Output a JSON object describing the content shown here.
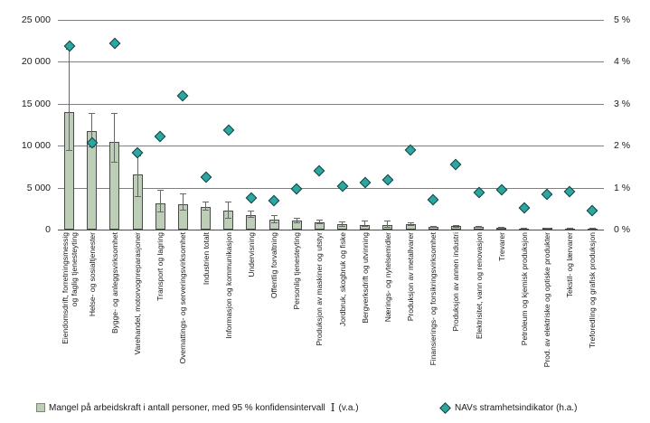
{
  "chart_data": {
    "type": "bar",
    "title": "",
    "categories": [
      "Eiendomsdrift, forretningsmessig\nog faglig tjenesteyting",
      "Helse- og sosialtjenester",
      "Bygge- og anleggsvirksomhet",
      "Varehandel, motorvognreparasjoner",
      "Transport og lagring",
      "Overnattings- og serveringsvirksomhet",
      "Industrien totalt",
      "Informasjon og kommunikasjon",
      "Undervisning",
      "Offentlig forvaltning",
      "Personlig tjenesteyting",
      "Produksjon av maskiner og utstyr",
      "Jordbruk, skogbruk og fiske",
      "Bergverksdrift og utvinning",
      "Nærings- og nytelsemidler",
      "Produksjon av metallvarer",
      "Finansierings- og forsikringsvirksomhet",
      "Produksjon av annen industri",
      "Elektrisitet, vann og renovasjon",
      "Trevarer",
      "Petroleum og kjemisk produksjon",
      "Prod. av elektriske og optiske produkter",
      "Tekstil- og lærvarer",
      "Treforedling og grafisk produksjon"
    ],
    "series": [
      {
        "name": "Mangel på arbeidskraft i antall personer, med 95 % konfidensintervall (v.a.)",
        "type": "bar",
        "axis": "left",
        "values": [
          14000,
          11700,
          10500,
          6600,
          3100,
          3050,
          2650,
          2300,
          1750,
          1200,
          1050,
          850,
          650,
          570,
          570,
          640,
          330,
          380,
          350,
          210,
          160,
          180,
          140,
          120
        ],
        "ci_low": [
          9400,
          9800,
          8000,
          3900,
          2000,
          2300,
          2300,
          1300,
          1350,
          800,
          800,
          600,
          350,
          280,
          250,
          420,
          220,
          250,
          230,
          120,
          90,
          100,
          70,
          60
        ],
        "ci_high": [
          21600,
          13900,
          13900,
          8800,
          4700,
          4300,
          3300,
          3300,
          2300,
          1750,
          1450,
          1200,
          1000,
          1050,
          1100,
          890,
          450,
          520,
          480,
          300,
          240,
          260,
          210,
          180
        ]
      },
      {
        "name": "NAVs stramhetsindikator (h.a.)",
        "type": "scatter",
        "axis": "right",
        "values": [
          4.38,
          2.07,
          4.45,
          1.84,
          2.21,
          3.19,
          1.26,
          2.36,
          0.76,
          0.7,
          0.96,
          1.4,
          1.04,
          1.11,
          1.18,
          1.9,
          0.71,
          1.55,
          0.89,
          0.94,
          0.52,
          0.84,
          0.91,
          0.45
        ]
      }
    ],
    "left_axis": {
      "min": 0,
      "max": 25000,
      "ticks": [
        "25 000",
        "20 000",
        "15 000",
        "10 000",
        "5 000",
        "0"
      ]
    },
    "right_axis": {
      "min": 0,
      "max": 5,
      "ticks": [
        "5 %",
        "4 %",
        "3 %",
        "2 %",
        "1 %",
        "0 %"
      ]
    },
    "grid": true,
    "legend_position": "bottom"
  },
  "legend": {
    "bar_label": "Mangel på arbeidskraft i antall personer, med 95 % konfidensintervall",
    "bar_glyph": "I",
    "bar_suffix": "(v.a.)",
    "scatter_label": "NAVs stramhetsindikator (h.a.)"
  },
  "colors": {
    "bar_fill": "#bccfb6",
    "bar_border": "#4a4a4a",
    "diamond_fill": "#2ca6a1",
    "diamond_border": "#16403e",
    "gridline": "#808080",
    "baseline": "#4d4d4d",
    "error_bar": "#666666",
    "legend_swatch_border": "#7a8a77",
    "text": "#1a1a1a"
  }
}
